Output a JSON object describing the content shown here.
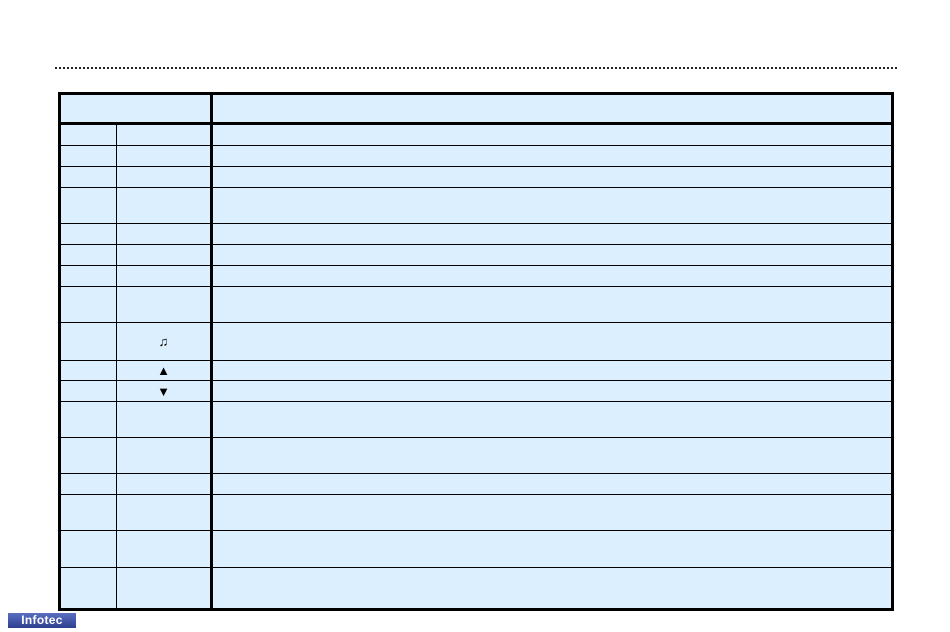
{
  "symbols": {
    "row9": "♫",
    "row10": "▲",
    "row11": "▼"
  },
  "logo": "Infotec",
  "colors": {
    "table_bg": "#dcefff",
    "border": "#000000"
  }
}
